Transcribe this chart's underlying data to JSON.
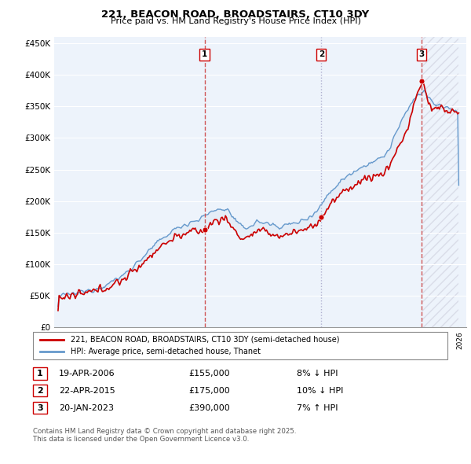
{
  "title": "221, BEACON ROAD, BROADSTAIRS, CT10 3DY",
  "subtitle": "Price paid vs. HM Land Registry's House Price Index (HPI)",
  "ylim": [
    0,
    460000
  ],
  "yticks": [
    0,
    50000,
    100000,
    150000,
    200000,
    250000,
    300000,
    350000,
    400000,
    450000
  ],
  "ytick_labels": [
    "£0",
    "£50K",
    "£100K",
    "£150K",
    "£200K",
    "£250K",
    "£300K",
    "£350K",
    "£400K",
    "£450K"
  ],
  "sale_color": "#cc0000",
  "hpi_color": "#6699cc",
  "hpi_fill_color": "#dce8f5",
  "vline_color_red": "#cc4444",
  "vline_color_gray": "#aaaacc",
  "background_color": "#edf3fb",
  "grid_color": "#ffffff",
  "transactions": [
    {
      "date_num": 2006.3,
      "price": 155000,
      "label": "1"
    },
    {
      "date_num": 2015.31,
      "price": 175000,
      "label": "2"
    },
    {
      "date_num": 2023.05,
      "price": 390000,
      "label": "3"
    }
  ],
  "legend_property_label": "221, BEACON ROAD, BROADSTAIRS, CT10 3DY (semi-detached house)",
  "legend_hpi_label": "HPI: Average price, semi-detached house, Thanet",
  "table_rows": [
    {
      "num": "1",
      "date": "19-APR-2006",
      "price": "£155,000",
      "rel": "8% ↓ HPI"
    },
    {
      "num": "2",
      "date": "22-APR-2015",
      "price": "£175,000",
      "rel": "10% ↓ HPI"
    },
    {
      "num": "3",
      "date": "20-JAN-2023",
      "price": "£390,000",
      "rel": "7% ↑ HPI"
    }
  ],
  "footnote": "Contains HM Land Registry data © Crown copyright and database right 2025.\nThis data is licensed under the Open Government Licence v3.0."
}
